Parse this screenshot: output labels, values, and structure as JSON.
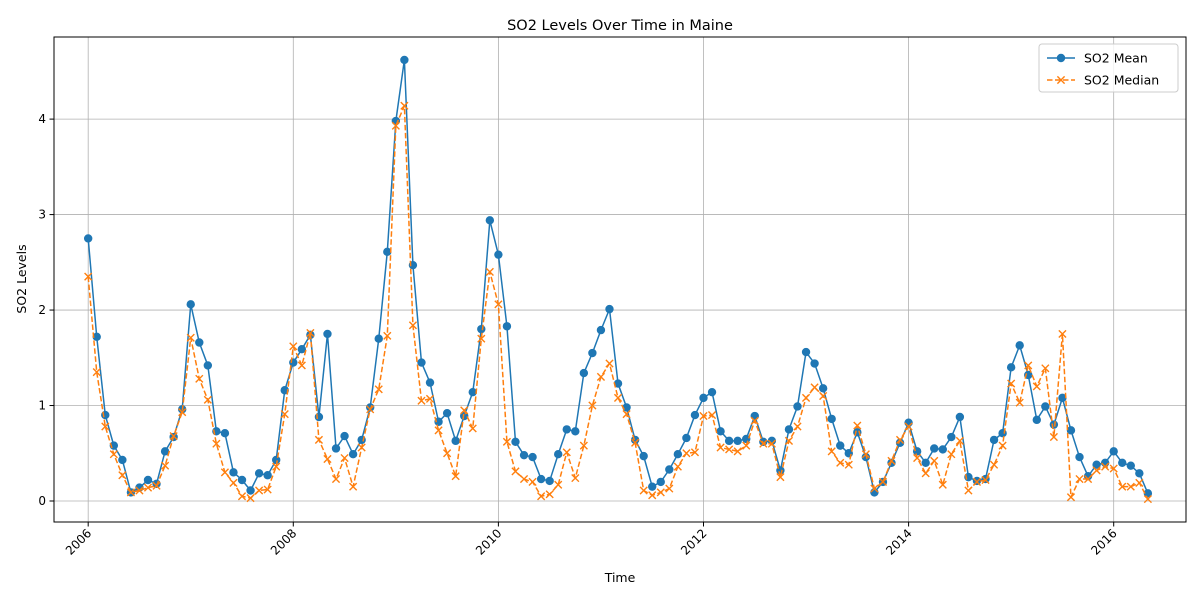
{
  "chart_data": {
    "type": "line",
    "title": "SO2 Levels Over Time in Maine",
    "xlabel": "Time",
    "ylabel": "SO2 Levels",
    "xlim": [
      "2005-09-01",
      "2016-09-15"
    ],
    "ylim": [
      -0.22,
      4.86
    ],
    "x_ticks": [
      "2006",
      "2008",
      "2010",
      "2012",
      "2014",
      "2016"
    ],
    "y_ticks": [
      "0",
      "1",
      "2",
      "3",
      "4"
    ],
    "grid": true,
    "legend_position": "top-right",
    "x": [
      "2006-01",
      "2006-02",
      "2006-03",
      "2006-04",
      "2006-05",
      "2006-06",
      "2006-07",
      "2006-08",
      "2006-09",
      "2006-10",
      "2006-11",
      "2006-12",
      "2007-01",
      "2007-02",
      "2007-03",
      "2007-04",
      "2007-05",
      "2007-06",
      "2007-07",
      "2007-08",
      "2007-09",
      "2007-10",
      "2007-11",
      "2007-12",
      "2008-01",
      "2008-02",
      "2008-03",
      "2008-04",
      "2008-05",
      "2008-06",
      "2008-07",
      "2008-08",
      "2008-09",
      "2008-10",
      "2008-11",
      "2008-12",
      "2009-01",
      "2009-02",
      "2009-03",
      "2009-04",
      "2009-05",
      "2009-06",
      "2009-07",
      "2009-08",
      "2009-09",
      "2009-10",
      "2009-11",
      "2009-12",
      "2010-01",
      "2010-02",
      "2010-03",
      "2010-04",
      "2010-05",
      "2010-06",
      "2010-07",
      "2010-08",
      "2010-09",
      "2010-10",
      "2010-11",
      "2010-12",
      "2011-01",
      "2011-02",
      "2011-03",
      "2011-04",
      "2011-05",
      "2011-06",
      "2011-07",
      "2011-08",
      "2011-09",
      "2011-10",
      "2011-11",
      "2011-12",
      "2012-01",
      "2012-02",
      "2012-03",
      "2012-04",
      "2012-05",
      "2012-06",
      "2012-07",
      "2012-08",
      "2012-09",
      "2012-10",
      "2012-11",
      "2012-12",
      "2013-01",
      "2013-02",
      "2013-03",
      "2013-04",
      "2013-05",
      "2013-06",
      "2013-07",
      "2013-08",
      "2013-09",
      "2013-10",
      "2013-11",
      "2013-12",
      "2014-01",
      "2014-02",
      "2014-03",
      "2014-04",
      "2014-05",
      "2014-06",
      "2014-07",
      "2014-08",
      "2014-09",
      "2014-10",
      "2014-11",
      "2014-12",
      "2015-01",
      "2015-02",
      "2015-03",
      "2015-04",
      "2015-05",
      "2015-06",
      "2015-07",
      "2015-08",
      "2015-09",
      "2015-10",
      "2015-11",
      "2015-12",
      "2016-01",
      "2016-02",
      "2016-03",
      "2016-04",
      "2016-05"
    ],
    "series": [
      {
        "name": "SO2 Mean",
        "color": "#1f77b4",
        "line_style": "solid",
        "marker": "circle",
        "values": [
          2.75,
          1.72,
          0.9,
          0.58,
          0.43,
          0.09,
          0.14,
          0.22,
          0.18,
          0.52,
          0.67,
          0.96,
          2.06,
          1.66,
          1.42,
          0.73,
          0.71,
          0.3,
          0.22,
          0.11,
          0.29,
          0.27,
          0.43,
          1.16,
          1.45,
          1.59,
          1.74,
          0.88,
          1.75,
          0.55,
          0.68,
          0.49,
          0.64,
          0.98,
          1.7,
          2.61,
          3.98,
          4.62,
          2.47,
          1.45,
          1.24,
          0.83,
          0.92,
          0.63,
          0.89,
          1.14,
          1.8,
          2.94,
          2.58,
          1.83,
          0.62,
          0.48,
          0.46,
          0.23,
          0.21,
          0.49,
          0.75,
          0.73,
          1.34,
          1.55,
          1.79,
          2.01,
          1.23,
          0.98,
          0.64,
          0.47,
          0.15,
          0.2,
          0.33,
          0.49,
          0.66,
          0.9,
          1.08,
          1.14,
          0.73,
          0.63,
          0.63,
          0.65,
          0.89,
          0.62,
          0.63,
          0.32,
          0.75,
          0.99,
          1.56,
          1.44,
          1.18,
          0.86,
          0.58,
          0.5,
          0.72,
          0.46,
          0.09,
          0.2,
          0.4,
          0.61,
          0.82,
          0.52,
          0.4,
          0.55,
          0.54,
          0.67,
          0.88,
          0.25,
          0.21,
          0.23,
          0.64,
          0.71,
          1.4,
          1.63,
          1.32,
          0.85,
          0.99,
          0.8,
          1.08,
          0.74,
          0.46,
          0.26,
          0.38,
          0.4,
          0.52,
          0.4,
          0.37,
          0.29,
          0.08
        ]
      },
      {
        "name": "SO2 Median",
        "color": "#ff7f0e",
        "line_style": "dashed",
        "marker": "x",
        "values": [
          2.35,
          1.35,
          0.78,
          0.49,
          0.27,
          0.09,
          0.11,
          0.14,
          0.16,
          0.37,
          0.68,
          0.93,
          1.71,
          1.28,
          1.06,
          0.6,
          0.3,
          0.19,
          0.05,
          0.03,
          0.11,
          0.12,
          0.36,
          0.91,
          1.62,
          1.42,
          1.76,
          0.64,
          0.44,
          0.23,
          0.45,
          0.15,
          0.56,
          0.96,
          1.17,
          1.73,
          3.93,
          4.14,
          1.84,
          1.05,
          1.07,
          0.74,
          0.5,
          0.26,
          0.95,
          0.76,
          1.7,
          2.4,
          2.06,
          0.62,
          0.31,
          0.23,
          0.2,
          0.05,
          0.07,
          0.17,
          0.51,
          0.24,
          0.58,
          1.0,
          1.3,
          1.44,
          1.08,
          0.91,
          0.61,
          0.11,
          0.06,
          0.09,
          0.13,
          0.36,
          0.5,
          0.51,
          0.89,
          0.9,
          0.56,
          0.54,
          0.52,
          0.58,
          0.84,
          0.6,
          0.6,
          0.25,
          0.63,
          0.78,
          1.08,
          1.19,
          1.1,
          0.52,
          0.4,
          0.38,
          0.79,
          0.49,
          0.13,
          0.2,
          0.42,
          0.64,
          0.78,
          0.45,
          0.29,
          0.42,
          0.17,
          0.49,
          0.63,
          0.11,
          0.2,
          0.22,
          0.38,
          0.58,
          1.23,
          1.03,
          1.42,
          1.2,
          1.39,
          0.67,
          1.75,
          0.04,
          0.23,
          0.23,
          0.32,
          0.36,
          0.34,
          0.15,
          0.15,
          0.19,
          0.02
        ]
      }
    ]
  }
}
